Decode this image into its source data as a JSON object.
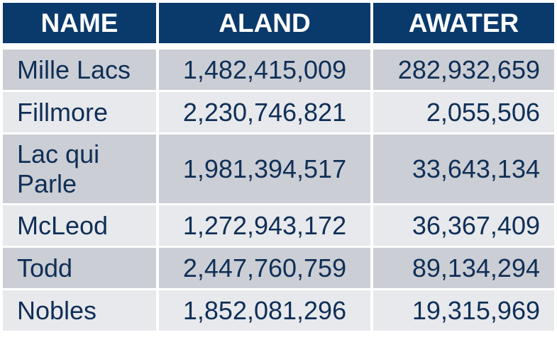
{
  "table": {
    "headers": [
      "NAME",
      "ALAND",
      "AWATER"
    ],
    "rows": [
      {
        "name": "Mille Lacs",
        "aland": "1,482,415,009",
        "awater": "282,932,659"
      },
      {
        "name": "Fillmore",
        "aland": "2,230,746,821",
        "awater": "2,055,506"
      },
      {
        "name": "Lac qui\nParle",
        "aland": "1,981,394,517",
        "awater": "33,643,134"
      },
      {
        "name": "McLeod",
        "aland": "1,272,943,172",
        "awater": "36,367,409"
      },
      {
        "name": "Todd",
        "aland": "2,447,760,759",
        "awater": "89,134,294"
      },
      {
        "name": "Nobles",
        "aland": "1,852,081,296",
        "awater": "19,315,969"
      }
    ]
  },
  "colors": {
    "header_bg": "#0a3a6b",
    "header_text": "#ffffff",
    "row_dark": "#cbced4",
    "row_light": "#e8e9ec",
    "body_text": "#0f2f57"
  }
}
